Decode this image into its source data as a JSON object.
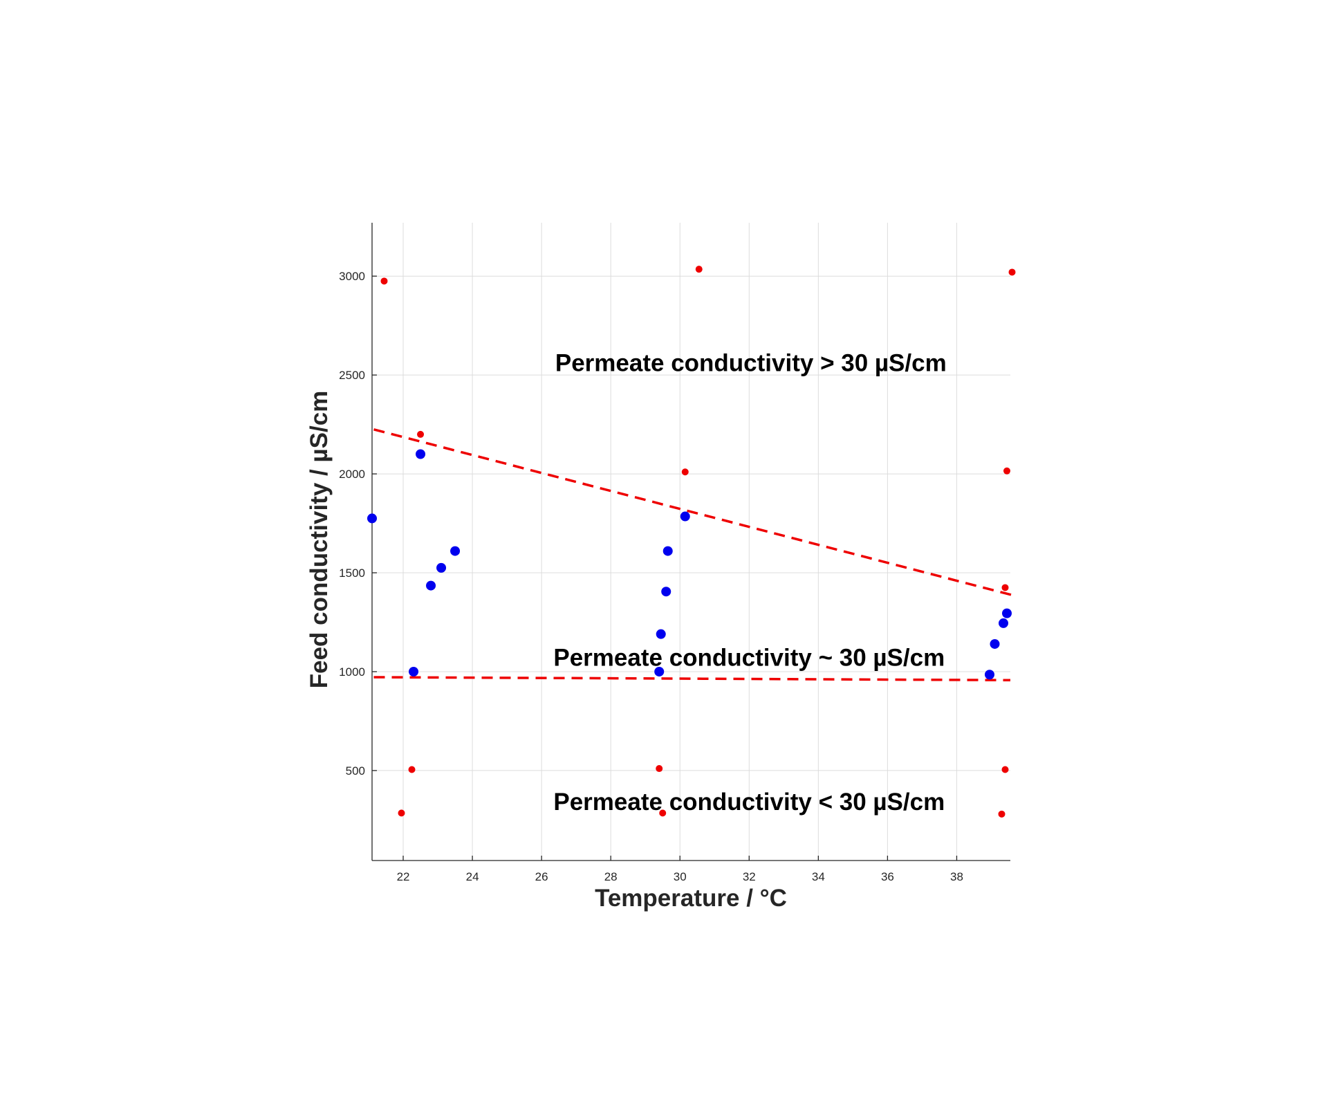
{
  "chart_data": {
    "type": "scatter",
    "xlabel": "Temperature /  °C",
    "ylabel": "Feed conductivity / µS/cm",
    "xlim": [
      21.1,
      39.55
    ],
    "ylim": [
      45,
      3270
    ],
    "xticks": [
      22,
      24,
      26,
      28,
      30,
      32,
      34,
      36,
      38
    ],
    "yticks": [
      500,
      1000,
      1500,
      2000,
      2500,
      3000
    ],
    "grid": true,
    "series": [
      {
        "color": "#0000ee",
        "marker": "large-dot",
        "points": [
          [
            21.1,
            1775
          ],
          [
            22.3,
            1000
          ],
          [
            22.5,
            2100
          ],
          [
            22.8,
            1435
          ],
          [
            23.1,
            1525
          ],
          [
            23.5,
            1610
          ],
          [
            29.4,
            1000
          ],
          [
            29.45,
            1190
          ],
          [
            29.6,
            1405
          ],
          [
            29.65,
            1610
          ],
          [
            30.15,
            1785
          ],
          [
            38.95,
            985
          ],
          [
            39.1,
            1140
          ],
          [
            39.35,
            1245
          ],
          [
            39.45,
            1295
          ]
        ]
      },
      {
        "color": "#ee0000",
        "marker": "small-dot",
        "points": [
          [
            21.45,
            2975
          ],
          [
            21.95,
            285
          ],
          [
            22.25,
            505
          ],
          [
            22.5,
            2200
          ],
          [
            29.4,
            510
          ],
          [
            29.5,
            285
          ],
          [
            30.15,
            2010
          ],
          [
            30.55,
            3035
          ],
          [
            39.3,
            280
          ],
          [
            39.4,
            505
          ],
          [
            39.4,
            1425
          ],
          [
            39.45,
            2015
          ],
          [
            39.6,
            3020
          ]
        ]
      }
    ],
    "lines": [
      {
        "color": "#ee0000",
        "style": "dashed",
        "points": [
          [
            21.15,
            2225
          ],
          [
            39.65,
            1385
          ]
        ]
      },
      {
        "color": "#ee0000",
        "style": "dashed",
        "points": [
          [
            21.15,
            972
          ],
          [
            39.55,
            957
          ]
        ]
      }
    ],
    "annotations": [
      {
        "text": "Permeate conductivity > 30 µS/cm",
        "x": 32.05,
        "y": 2520
      },
      {
        "text": "Permeate conductivity ~ 30 µS/cm",
        "x": 32.0,
        "y": 1030
      },
      {
        "text": "Permeate conductivity < 30 µS/cm",
        "x": 32.0,
        "y": 300
      }
    ]
  }
}
